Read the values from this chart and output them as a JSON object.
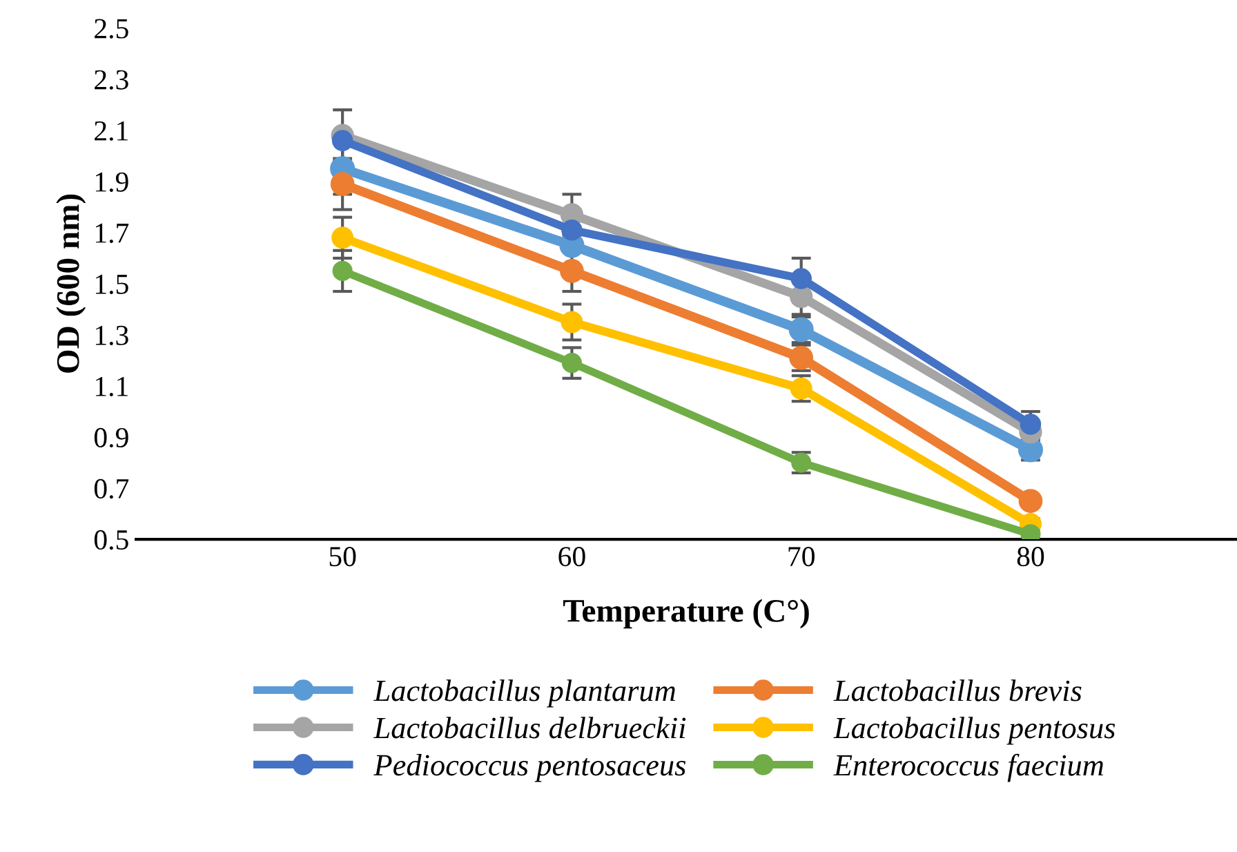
{
  "chart_data": {
    "type": "line",
    "xlabel": "Temperature (C°)",
    "ylabel": "OD (600 nm)",
    "categories": [
      "50",
      "60",
      "70",
      "80"
    ],
    "ylim": [
      0.5,
      2.5
    ],
    "yticks": [
      0.5,
      0.7,
      0.9,
      1.1,
      1.3,
      1.5,
      1.7,
      1.9,
      2.1,
      2.3,
      2.5
    ],
    "grid": false,
    "legend": "bottom",
    "marker": "circle",
    "line_style": "solid",
    "series": [
      {
        "name": "Lactobacillus plantarum",
        "color": "#5b9bd5",
        "values": [
          1.95,
          1.65,
          1.32,
          0.85
        ],
        "errors": [
          0.1,
          null,
          0.05,
          0.04
        ]
      },
      {
        "name": "Lactobacillus brevis",
        "color": "#ed7d31",
        "values": [
          1.89,
          1.55,
          1.21,
          0.65
        ],
        "errors": [
          0.1,
          0.08,
          0.05,
          0.02
        ]
      },
      {
        "name": "Lactobacillus delbrueckii",
        "color": "#a5a5a5",
        "values": [
          2.08,
          1.77,
          1.45,
          0.92
        ],
        "errors": [
          0.1,
          0.08,
          0.07,
          0.04
        ]
      },
      {
        "name": "Lactobacillus pentosus",
        "color": "#ffc000",
        "values": [
          1.68,
          1.35,
          1.09,
          0.56
        ],
        "errors": [
          0.08,
          0.07,
          0.05,
          0.02
        ]
      },
      {
        "name": "Pediococcus pentosaceus",
        "color": "#4472c4",
        "values": [
          2.06,
          1.71,
          1.52,
          0.95
        ],
        "errors": [
          null,
          0.08,
          0.08,
          0.05
        ]
      },
      {
        "name": "Enterococcus faecium",
        "color": "#70ad47",
        "values": [
          1.55,
          1.19,
          0.8,
          0.52
        ],
        "errors": [
          0.08,
          0.06,
          0.04,
          null
        ]
      }
    ]
  }
}
